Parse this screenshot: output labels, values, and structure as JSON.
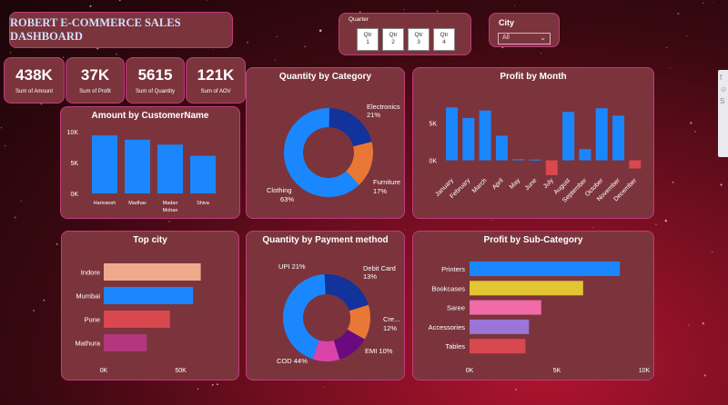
{
  "header": {
    "title": "ROBERT E-COMMERCE SALES DASHBOARD"
  },
  "kpis": [
    {
      "value": "438K",
      "label": "Sum of Amount"
    },
    {
      "value": "37K",
      "label": "Sum of Profit"
    },
    {
      "value": "5615",
      "label": "Sum of Quantity"
    },
    {
      "value": "121K",
      "label": "Sum of AOV"
    }
  ],
  "slicer_quarter": {
    "label": "Quarter",
    "options": [
      {
        "line1": "Qtr",
        "line2": "1"
      },
      {
        "line1": "Qtr",
        "line2": "2"
      },
      {
        "line1": "Qtr",
        "line2": "3"
      },
      {
        "line1": "Qtr",
        "line2": "4"
      }
    ]
  },
  "slicer_city": {
    "label": "City",
    "value": "All"
  },
  "colors": {
    "bar_blue": "#1a87ff",
    "neg_red": "#d9474f",
    "donut_blue": "#1a87ff",
    "donut_navy": "#12329c",
    "donut_orange": "#e97836",
    "donut_purple": "#6a0a80",
    "donut_pink": "#d943a8"
  },
  "right_strip": {
    "items": [
      "f",
      "☺",
      "S"
    ]
  },
  "chart_data": [
    {
      "id": "amount_by_customer",
      "type": "bar",
      "title": "Amount by CustomerName",
      "categories": [
        "Harivansh",
        "Madhav",
        "Madan Mohan",
        "Shiva"
      ],
      "values": [
        9400,
        8700,
        7900,
        6100
      ],
      "yticks": [
        "0K",
        "5K",
        "10K"
      ],
      "ylim": [
        0,
        10000
      ]
    },
    {
      "id": "quantity_by_category",
      "type": "pie",
      "title": "Quantity by Category",
      "labels": [
        {
          "name": "Electronics",
          "value": "21%"
        },
        {
          "name": "Furniture",
          "value": "17%"
        },
        {
          "name": "Clothing",
          "value": "63%"
        }
      ],
      "values": [
        21,
        17,
        63
      ],
      "colors": [
        "#12329c",
        "#e97836",
        "#1a87ff"
      ]
    },
    {
      "id": "profit_by_month",
      "type": "bar",
      "title": "Profit by Month",
      "categories": [
        "January",
        "February",
        "March",
        "April",
        "May",
        "June",
        "July",
        "August",
        "September",
        "October",
        "November",
        "December"
      ],
      "values": [
        7100,
        5700,
        6700,
        3300,
        150,
        100,
        -2000,
        6500,
        1500,
        7000,
        6000,
        -1100
      ],
      "yticks": [
        "0K",
        "5K"
      ],
      "ylim": [
        -2500,
        8000
      ]
    },
    {
      "id": "top_city",
      "type": "bar",
      "orientation": "horizontal",
      "title": "Top city",
      "categories": [
        "Indore",
        "Mumbai",
        "Pune",
        "Mathura"
      ],
      "values": [
        63000,
        58000,
        43000,
        28000
      ],
      "colors": [
        "#f0a98c",
        "#1a87ff",
        "#d9474f",
        "#b3367e"
      ],
      "xticks": [
        "0K",
        "50K"
      ],
      "xlim": [
        0,
        65000
      ]
    },
    {
      "id": "quantity_by_payment",
      "type": "pie",
      "title": "Quantity by Payment method",
      "labels": [
        {
          "name": "UPI",
          "value": "21%"
        },
        {
          "name": "Debit Card",
          "value": "13%"
        },
        {
          "name": "Cre...",
          "value": "12%"
        },
        {
          "name": "EMI",
          "value": "10%"
        },
        {
          "name": "COD",
          "value": "44%"
        }
      ],
      "values": [
        21,
        13,
        12,
        10,
        44
      ],
      "colors": [
        "#12329c",
        "#e97836",
        "#6a0a80",
        "#d943a8",
        "#1a87ff"
      ]
    },
    {
      "id": "profit_by_subcategory",
      "type": "bar",
      "orientation": "horizontal",
      "title": "Profit by Sub-Category",
      "categories": [
        "Printers",
        "Bookcases",
        "Saree",
        "Accessories",
        "Tables"
      ],
      "values": [
        8600,
        6500,
        4100,
        3400,
        3200
      ],
      "colors": [
        "#1a87ff",
        "#e2c533",
        "#f06ba8",
        "#9a76d6",
        "#d9474f"
      ],
      "xticks": [
        "0K",
        "5K",
        "10K"
      ],
      "xlim": [
        0,
        10000
      ]
    }
  ]
}
